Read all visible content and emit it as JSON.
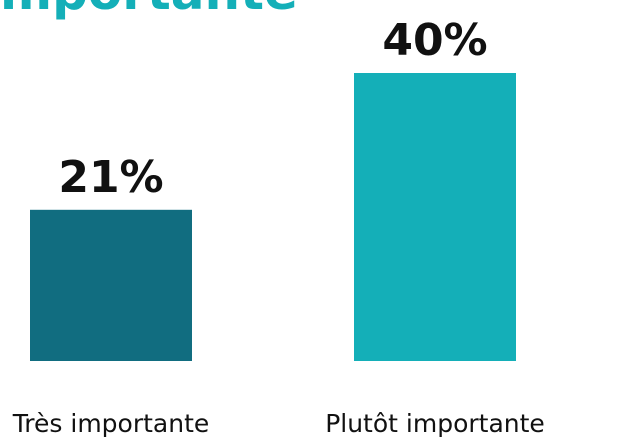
{
  "colors": {
    "title": "#14afb8",
    "series": [
      "#116d80",
      "#14afb8"
    ]
  },
  "chart_data": {
    "type": "bar",
    "title": "mportante",
    "categories": [
      "Très importante",
      "Plutôt importante"
    ],
    "values": [
      21,
      40
    ],
    "value_labels": [
      "21%",
      "40%"
    ],
    "ylim": [
      0,
      40
    ],
    "grid": false,
    "legend": "none"
  }
}
